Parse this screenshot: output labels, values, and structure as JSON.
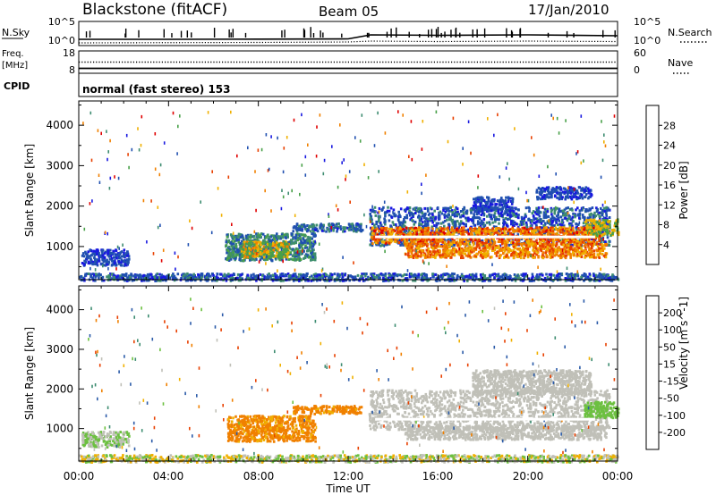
{
  "header": {
    "station": "Blackstone (fitACF)",
    "beam": "Beam 05",
    "date": "17/Jan/2010"
  },
  "noise_panel": {
    "left_label": "N.Sky",
    "left_ticks": [
      "10^5",
      "10^0"
    ],
    "right_label": "N.Search",
    "right_ticks": [
      "10^5",
      "10^0"
    ]
  },
  "freq_panel": {
    "left_label_line1": "Freq.",
    "left_label_line2": "[MHz]",
    "left_ticks": [
      "18",
      "8"
    ],
    "right_label": "Nave",
    "right_ticks": [
      "60",
      "0"
    ]
  },
  "cpid": {
    "label": "CPID",
    "value": "normal (fast stereo) 153"
  },
  "x_axis": {
    "ticks": [
      "00:00",
      "04:00",
      "08:00",
      "12:00",
      "16:00",
      "20:00",
      "00:00"
    ],
    "label": "Time UT"
  },
  "y_axis": {
    "label": "Slant Range [km]",
    "ticks": [
      "1000",
      "2000",
      "3000",
      "4000"
    ]
  },
  "power_colorbar": {
    "label": "Power [dB]",
    "ticks": [
      "4",
      "8",
      "12",
      "16",
      "20",
      "24",
      "28"
    ],
    "colors": [
      "#1818e0",
      "#2050b0",
      "#3d8c70",
      "#48a048",
      "#f0b000",
      "#f08000",
      "#e84000",
      "#e00000"
    ]
  },
  "velocity_colorbar": {
    "label": "Velocity [m s^-1]",
    "ticks": [
      "200",
      "100",
      "50",
      "15",
      "-15",
      "-50",
      "-100",
      "-200"
    ],
    "colors": [
      "#1a2a9a",
      "#2a5aa8",
      "#3c8c70",
      "#6cc040",
      "#c0c0b8",
      "#f0b000",
      "#f08000",
      "#e84000",
      "#e00000"
    ]
  },
  "chart_data": [
    {
      "type": "line",
      "panel": "noise",
      "series": [
        {
          "name": "N.Sky",
          "style": "solid",
          "x_hours": [
            0,
            4,
            8,
            12,
            13,
            16,
            20,
            24
          ],
          "log10_values": [
            1.2,
            1.2,
            1.25,
            1.3,
            2.2,
            2.1,
            2.2,
            2.0
          ]
        },
        {
          "name": "N.Search",
          "style": "dotted",
          "x_hours": [
            0,
            8,
            12,
            13,
            16,
            20,
            24
          ],
          "log10_values": [
            0.4,
            0.5,
            0.6,
            0.8,
            0.7,
            0.8,
            0.7
          ]
        }
      ],
      "ylim_log10": [
        0,
        5
      ]
    },
    {
      "type": "line",
      "panel": "freq",
      "series": [
        {
          "name": "Freq. [MHz]",
          "style": "solid",
          "x_hours": [
            0,
            24
          ],
          "values": [
            10.2,
            10.2
          ]
        },
        {
          "name": "Nave",
          "style": "dotted",
          "x_hours": [
            0,
            24
          ],
          "values": [
            30,
            30
          ]
        }
      ],
      "ylim_freq": [
        8,
        18
      ],
      "ylim_nave": [
        0,
        60
      ]
    },
    {
      "type": "heatmap",
      "panel": "power",
      "xlim_hours": [
        0,
        24
      ],
      "ylim_km": [
        180,
        4600
      ],
      "zlim_db": [
        0,
        32
      ],
      "regions": [
        {
          "x0": 0.1,
          "x1": 2.2,
          "y0": 560,
          "y1": 950,
          "v_lo": 2,
          "v_hi": 8
        },
        {
          "x0": 6.5,
          "x1": 10.5,
          "y0": 680,
          "y1": 1350,
          "v_lo": 4,
          "v_hi": 14
        },
        {
          "x0": 7.2,
          "x1": 9.3,
          "y0": 750,
          "y1": 1150,
          "v_lo": 12,
          "v_hi": 22
        },
        {
          "x0": 9.5,
          "x1": 12.6,
          "y0": 1400,
          "y1": 1600,
          "v_lo": 3,
          "v_hi": 12
        },
        {
          "x0": 12.9,
          "x1": 23.6,
          "y0": 1050,
          "y1": 2000,
          "v_lo": 2,
          "v_hi": 10
        },
        {
          "x0": 13.0,
          "x1": 23.2,
          "y0": 1100,
          "y1": 1500,
          "v_lo": 16,
          "v_hi": 30
        },
        {
          "x0": 14.5,
          "x1": 23.5,
          "y0": 750,
          "y1": 1100,
          "v_lo": 16,
          "v_hi": 28
        },
        {
          "x0": 17.5,
          "x1": 19.3,
          "y0": 1900,
          "y1": 2250,
          "v_lo": 2,
          "v_hi": 8
        },
        {
          "x0": 20.3,
          "x1": 22.8,
          "y0": 2200,
          "y1": 2500,
          "v_lo": 2,
          "v_hi": 8
        },
        {
          "x0": 22.5,
          "x1": 24.0,
          "y0": 1300,
          "y1": 1700,
          "v_lo": 12,
          "v_hi": 20
        },
        {
          "x0": 0,
          "x1": 24,
          "y0": 180,
          "y1": 360,
          "v_lo": 2,
          "v_hi": 10
        }
      ]
    },
    {
      "type": "heatmap",
      "panel": "velocity",
      "xlim_hours": [
        0,
        24
      ],
      "ylim_km": [
        180,
        4600
      ],
      "zlim_ms": [
        -200,
        200
      ],
      "regions": [
        {
          "x0": 0.1,
          "x1": 2.2,
          "y0": 560,
          "y1": 950,
          "v_lo": -10,
          "v_hi": 40
        },
        {
          "x0": 6.6,
          "x1": 10.5,
          "y0": 700,
          "y1": 1350,
          "v_lo": -75,
          "v_hi": -45
        },
        {
          "x0": 9.5,
          "x1": 12.6,
          "y0": 1400,
          "y1": 1600,
          "v_lo": -75,
          "v_hi": -45
        },
        {
          "x0": 12.9,
          "x1": 23.6,
          "y0": 1000,
          "y1": 2000,
          "v_lo": -12,
          "v_hi": 12
        },
        {
          "x0": 14.5,
          "x1": 23.5,
          "y0": 750,
          "y1": 1100,
          "v_lo": -12,
          "v_hi": 12
        },
        {
          "x0": 17.5,
          "x1": 22.8,
          "y0": 1900,
          "y1": 2500,
          "v_lo": -12,
          "v_hi": 12
        },
        {
          "x0": 22.5,
          "x1": 24.0,
          "y0": 1300,
          "y1": 1700,
          "v_lo": 15,
          "v_hi": 45
        },
        {
          "x0": 0,
          "x1": 24,
          "y0": 180,
          "y1": 360,
          "v_lo": -40,
          "v_hi": 40
        }
      ]
    }
  ]
}
